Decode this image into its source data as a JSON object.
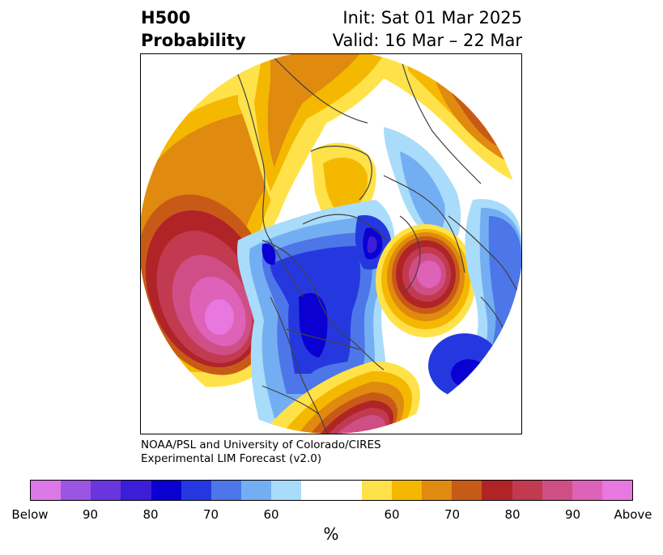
{
  "title": {
    "left_line1": "H500",
    "left_line2": "Probability",
    "right_line1": "Init: Sat 01 Mar 2025",
    "right_line2": "Valid: 16 Mar – 22 Mar"
  },
  "credit": {
    "line1": "NOAA/PSL and University of Colorado/CIRES",
    "line2": "Experimental LIM Forecast (v2.0)"
  },
  "colorbar": {
    "colors": [
      "#dc78e6",
      "#9b55e3",
      "#6a35dc",
      "#3c1ed6",
      "#0a00d2",
      "#2538e0",
      "#4d76e8",
      "#74aef2",
      "#a8dcfa",
      "#ffffff",
      "#ffffff",
      "#ffe24a",
      "#f5b800",
      "#e08a10",
      "#c85a18",
      "#b02428",
      "#c23a50",
      "#d04e86",
      "#de62b8",
      "#e877e0"
    ],
    "labels": [
      "Below",
      "90",
      "80",
      "70",
      "60",
      "60",
      "70",
      "80",
      "90",
      "Above"
    ],
    "unit": "%"
  }
}
